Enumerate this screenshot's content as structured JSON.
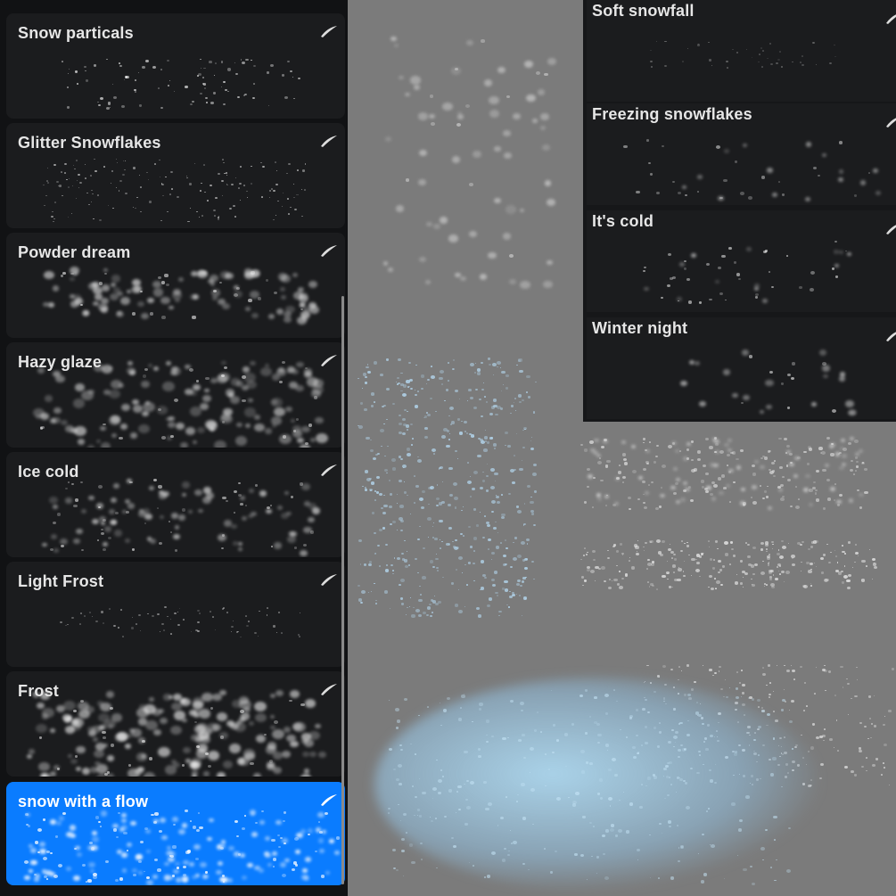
{
  "brush_library": {
    "brushes": [
      {
        "label": "Snow particals",
        "selected": false
      },
      {
        "label": "Glitter Snowflakes",
        "selected": false
      },
      {
        "label": "Powder dream",
        "selected": false
      },
      {
        "label": "Hazy glaze",
        "selected": false
      },
      {
        "label": "Ice cold",
        "selected": false
      },
      {
        "label": "Light Frost",
        "selected": false
      },
      {
        "label": "Frost",
        "selected": false
      },
      {
        "label": "snow with a flow",
        "selected": true
      }
    ]
  },
  "second_library": {
    "brushes": [
      {
        "label": "Soft snowfall"
      },
      {
        "label": "Freezing snowflakes"
      },
      {
        "label": "It's cold"
      },
      {
        "label": "Winter night"
      }
    ]
  },
  "colors": {
    "selected": "#0a7cff",
    "panel": "#1b1c1e",
    "canvas": "#7b7b7b",
    "snow_blue": "#a9d4f0"
  },
  "icons": {
    "brush_stroke": "stroke-icon"
  }
}
